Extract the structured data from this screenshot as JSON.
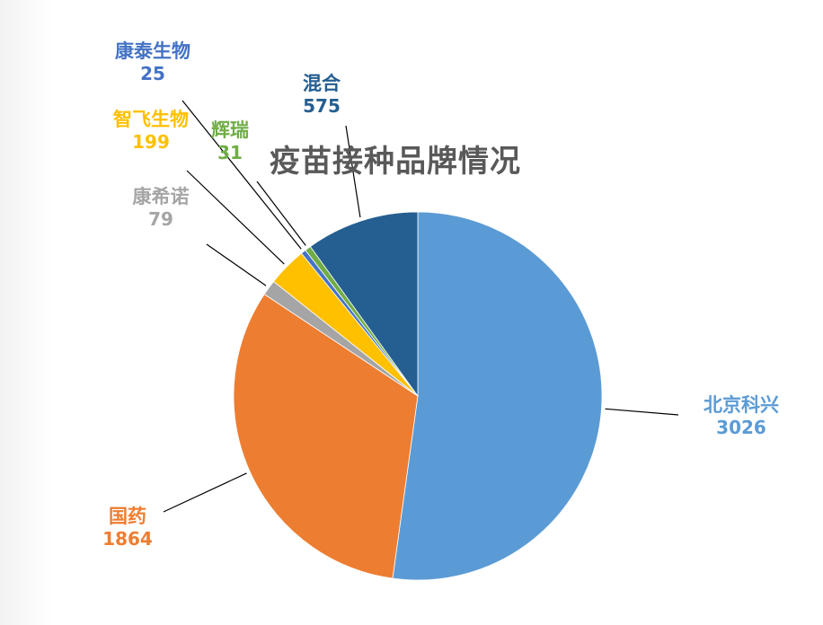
{
  "chart_data": {
    "type": "pie",
    "title": "疫苗接种品牌情况",
    "slices": [
      {
        "label": "北京科兴",
        "value": 3026,
        "value_text": "3026",
        "color": "#5B9BD5"
      },
      {
        "label": "国药",
        "value": 1864,
        "value_text": "1864",
        "color": "#ED7D31"
      },
      {
        "label": "康希诺",
        "value": 79,
        "value_text": "79",
        "color": "#A5A5A5"
      },
      {
        "label": "智飞生物",
        "value": 199,
        "value_text": "199",
        "color": "#FFC000"
      },
      {
        "label": "康泰生物",
        "value": 25,
        "value_text": "25",
        "color": "#4472C4"
      },
      {
        "label": "辉瑞",
        "value": 31,
        "value_text": "31",
        "color": "#70AD47"
      },
      {
        "label": "混合",
        "value": 575,
        "value_text": "575",
        "color": "#255E91"
      }
    ],
    "start": "12 o'clock",
    "direction": "clockwise",
    "legend": "none",
    "data_labels": "outside with leader lines"
  }
}
